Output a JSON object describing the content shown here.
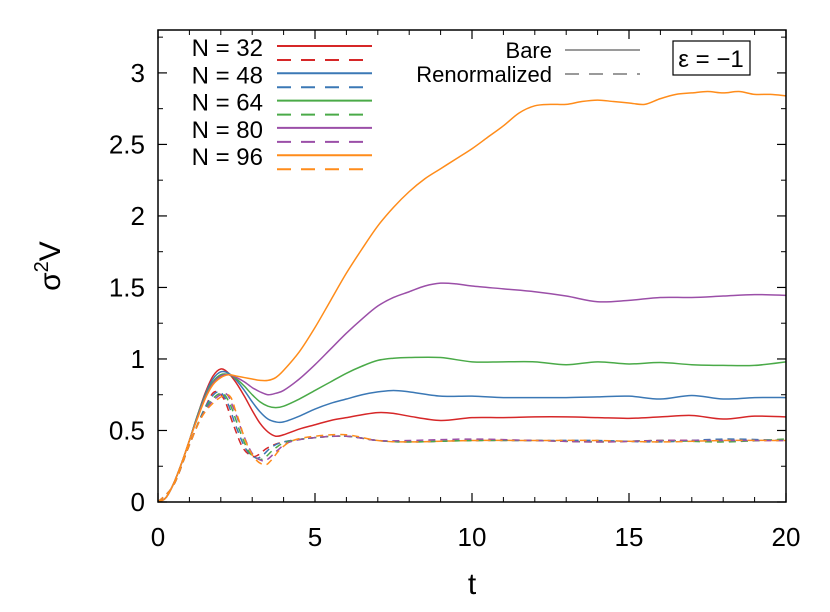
{
  "chart_data": {
    "type": "line",
    "title": "",
    "xlabel": "t",
    "ylabel_base": "σ",
    "ylabel_sup": "2",
    "ylabel_tail": "V",
    "xlim": [
      0,
      20
    ],
    "ylim": [
      0,
      3.3
    ],
    "xticks": [
      0,
      5,
      10,
      15,
      20
    ],
    "xtick_labels": [
      "0",
      "5",
      "10",
      "15",
      "20"
    ],
    "yticks": [
      0,
      0.5,
      1,
      1.5,
      2,
      2.5,
      3
    ],
    "ytick_labels": [
      "0",
      "0.5",
      "1",
      "1.5",
      "2",
      "2.5",
      "3"
    ],
    "grid": false,
    "annotation": "ε = −1",
    "line_styles": [
      {
        "label": "Bare",
        "dash": "solid"
      },
      {
        "label": "Renormalized",
        "dash": "dashed"
      }
    ],
    "style_color": "#9a9a9a",
    "series": [
      {
        "name": "N = 32",
        "color": "#d62728",
        "bare": {
          "x": [
            0,
            0.25,
            0.5,
            0.75,
            1,
            1.25,
            1.5,
            1.75,
            2,
            2.25,
            2.5,
            2.75,
            3,
            3.25,
            3.5,
            3.75,
            4,
            4.5,
            5,
            5.5,
            6,
            6.5,
            7,
            7.5,
            8,
            9,
            10,
            11,
            12,
            13,
            14,
            15,
            16,
            17,
            18,
            19,
            20
          ],
          "y": [
            0,
            0.03,
            0.13,
            0.27,
            0.43,
            0.6,
            0.76,
            0.88,
            0.93,
            0.9,
            0.83,
            0.74,
            0.64,
            0.55,
            0.49,
            0.46,
            0.47,
            0.51,
            0.54,
            0.57,
            0.59,
            0.61,
            0.625,
            0.62,
            0.6,
            0.57,
            0.59,
            0.59,
            0.595,
            0.595,
            0.59,
            0.585,
            0.595,
            0.605,
            0.58,
            0.6,
            0.595
          ]
        },
        "renormalized": {
          "x": [
            0,
            0.5,
            1,
            1.5,
            1.8,
            2.1,
            2.4,
            2.7,
            3,
            3.2,
            3.5,
            4,
            5,
            6,
            7,
            8,
            10,
            12,
            14,
            16,
            18,
            20
          ],
          "y": [
            0,
            0.12,
            0.4,
            0.66,
            0.77,
            0.72,
            0.54,
            0.38,
            0.32,
            0.33,
            0.38,
            0.42,
            0.45,
            0.46,
            0.43,
            0.42,
            0.43,
            0.43,
            0.42,
            0.43,
            0.43,
            0.43
          ]
        }
      },
      {
        "name": "N = 48",
        "color": "#3b78b5",
        "bare": {
          "x": [
            0,
            0.25,
            0.5,
            0.75,
            1,
            1.25,
            1.5,
            1.75,
            2,
            2.25,
            2.5,
            2.75,
            3,
            3.25,
            3.5,
            3.75,
            4,
            4.5,
            5,
            5.5,
            6,
            6.5,
            7,
            7.5,
            8,
            9,
            10,
            11,
            12,
            13,
            14,
            15,
            16,
            17,
            18,
            19,
            20
          ],
          "y": [
            0,
            0.03,
            0.13,
            0.27,
            0.43,
            0.6,
            0.75,
            0.86,
            0.91,
            0.9,
            0.85,
            0.78,
            0.7,
            0.63,
            0.58,
            0.56,
            0.56,
            0.6,
            0.65,
            0.69,
            0.72,
            0.75,
            0.77,
            0.78,
            0.77,
            0.74,
            0.74,
            0.73,
            0.73,
            0.73,
            0.735,
            0.74,
            0.72,
            0.745,
            0.72,
            0.73,
            0.73
          ]
        },
        "renormalized": {
          "x": [
            0,
            0.5,
            1,
            1.5,
            1.9,
            2.2,
            2.5,
            2.8,
            3.1,
            3.3,
            3.6,
            4,
            5,
            6,
            7,
            8,
            10,
            12,
            14,
            16,
            18,
            20
          ],
          "y": [
            0,
            0.12,
            0.4,
            0.66,
            0.77,
            0.7,
            0.52,
            0.37,
            0.31,
            0.32,
            0.38,
            0.42,
            0.45,
            0.46,
            0.43,
            0.42,
            0.43,
            0.43,
            0.43,
            0.42,
            0.44,
            0.43
          ]
        }
      },
      {
        "name": "N = 64",
        "color": "#4aaa48",
        "bare": {
          "x": [
            0,
            0.25,
            0.5,
            0.75,
            1,
            1.25,
            1.5,
            1.75,
            2,
            2.25,
            2.5,
            2.75,
            3,
            3.25,
            3.5,
            3.75,
            4,
            4.5,
            5,
            5.5,
            6,
            6.5,
            7,
            7.5,
            8,
            9,
            10,
            11,
            12,
            13,
            14,
            15,
            16,
            17,
            18,
            19,
            20
          ],
          "y": [
            0,
            0.03,
            0.13,
            0.27,
            0.43,
            0.6,
            0.74,
            0.84,
            0.89,
            0.89,
            0.86,
            0.81,
            0.75,
            0.7,
            0.67,
            0.66,
            0.67,
            0.72,
            0.78,
            0.84,
            0.9,
            0.95,
            0.99,
            1.005,
            1.01,
            1.01,
            0.98,
            0.98,
            0.98,
            0.96,
            0.98,
            0.965,
            0.975,
            0.96,
            0.955,
            0.955,
            0.98
          ]
        },
        "renormalized": {
          "x": [
            0,
            0.5,
            1,
            1.5,
            2.0,
            2.3,
            2.6,
            2.9,
            3.2,
            3.4,
            3.7,
            4.1,
            5,
            6,
            7,
            8,
            10,
            12,
            14,
            16,
            18,
            20
          ],
          "y": [
            0,
            0.12,
            0.4,
            0.65,
            0.76,
            0.68,
            0.5,
            0.35,
            0.3,
            0.31,
            0.37,
            0.42,
            0.45,
            0.46,
            0.43,
            0.42,
            0.43,
            0.43,
            0.42,
            0.43,
            0.42,
            0.44
          ]
        }
      },
      {
        "name": "N = 80",
        "color": "#9b4fa8",
        "bare": {
          "x": [
            0,
            0.25,
            0.5,
            0.75,
            1,
            1.25,
            1.5,
            1.75,
            2,
            2.25,
            2.5,
            2.75,
            3,
            3.25,
            3.5,
            3.75,
            4,
            4.5,
            5,
            5.5,
            6,
            6.5,
            7,
            7.5,
            8,
            8.5,
            9,
            9.5,
            10,
            11,
            12,
            13,
            14,
            15,
            16,
            17,
            18,
            19,
            20
          ],
          "y": [
            0,
            0.03,
            0.13,
            0.27,
            0.43,
            0.59,
            0.73,
            0.83,
            0.88,
            0.89,
            0.87,
            0.84,
            0.8,
            0.77,
            0.75,
            0.76,
            0.78,
            0.86,
            0.96,
            1.07,
            1.18,
            1.28,
            1.37,
            1.43,
            1.47,
            1.51,
            1.53,
            1.525,
            1.51,
            1.49,
            1.47,
            1.44,
            1.4,
            1.41,
            1.43,
            1.43,
            1.44,
            1.45,
            1.445
          ]
        },
        "renormalized": {
          "x": [
            0,
            0.5,
            1,
            1.5,
            2.1,
            2.4,
            2.7,
            3.0,
            3.3,
            3.5,
            3.8,
            4.2,
            5,
            6,
            7,
            8,
            10,
            12,
            14,
            16,
            18,
            20
          ],
          "y": [
            0,
            0.12,
            0.4,
            0.64,
            0.76,
            0.66,
            0.48,
            0.34,
            0.29,
            0.3,
            0.36,
            0.42,
            0.45,
            0.46,
            0.43,
            0.43,
            0.44,
            0.43,
            0.42,
            0.43,
            0.43,
            0.43
          ]
        }
      },
      {
        "name": "N = 96",
        "color": "#ff8c1a",
        "bare": {
          "x": [
            0,
            0.25,
            0.5,
            0.75,
            1,
            1.25,
            1.5,
            1.75,
            2,
            2.25,
            2.5,
            2.75,
            3,
            3.25,
            3.5,
            3.75,
            4,
            4.5,
            5,
            5.5,
            6,
            6.5,
            7,
            7.5,
            8,
            8.5,
            9,
            9.5,
            10,
            10.5,
            11,
            11.5,
            12,
            12.5,
            13,
            13.5,
            14,
            14.5,
            15,
            15.5,
            16,
            16.5,
            17,
            17.5,
            18,
            18.5,
            19,
            19.5,
            20
          ],
          "y": [
            0,
            0.03,
            0.13,
            0.27,
            0.43,
            0.58,
            0.72,
            0.82,
            0.87,
            0.89,
            0.88,
            0.87,
            0.86,
            0.85,
            0.85,
            0.87,
            0.92,
            1.05,
            1.22,
            1.41,
            1.6,
            1.77,
            1.93,
            2.06,
            2.17,
            2.26,
            2.33,
            2.4,
            2.47,
            2.55,
            2.63,
            2.72,
            2.77,
            2.78,
            2.78,
            2.8,
            2.81,
            2.8,
            2.79,
            2.78,
            2.82,
            2.85,
            2.86,
            2.87,
            2.86,
            2.87,
            2.85,
            2.85,
            2.84
          ]
        },
        "renormalized": {
          "x": [
            0,
            0.5,
            1,
            1.5,
            2.2,
            2.5,
            2.8,
            3.1,
            3.4,
            3.6,
            3.9,
            4.3,
            5,
            6,
            7,
            8,
            10,
            12,
            14,
            16,
            18,
            20
          ],
          "y": [
            0,
            0.12,
            0.4,
            0.63,
            0.75,
            0.62,
            0.42,
            0.3,
            0.26,
            0.29,
            0.37,
            0.43,
            0.46,
            0.47,
            0.43,
            0.42,
            0.43,
            0.43,
            0.43,
            0.42,
            0.43,
            0.43
          ]
        }
      }
    ]
  }
}
